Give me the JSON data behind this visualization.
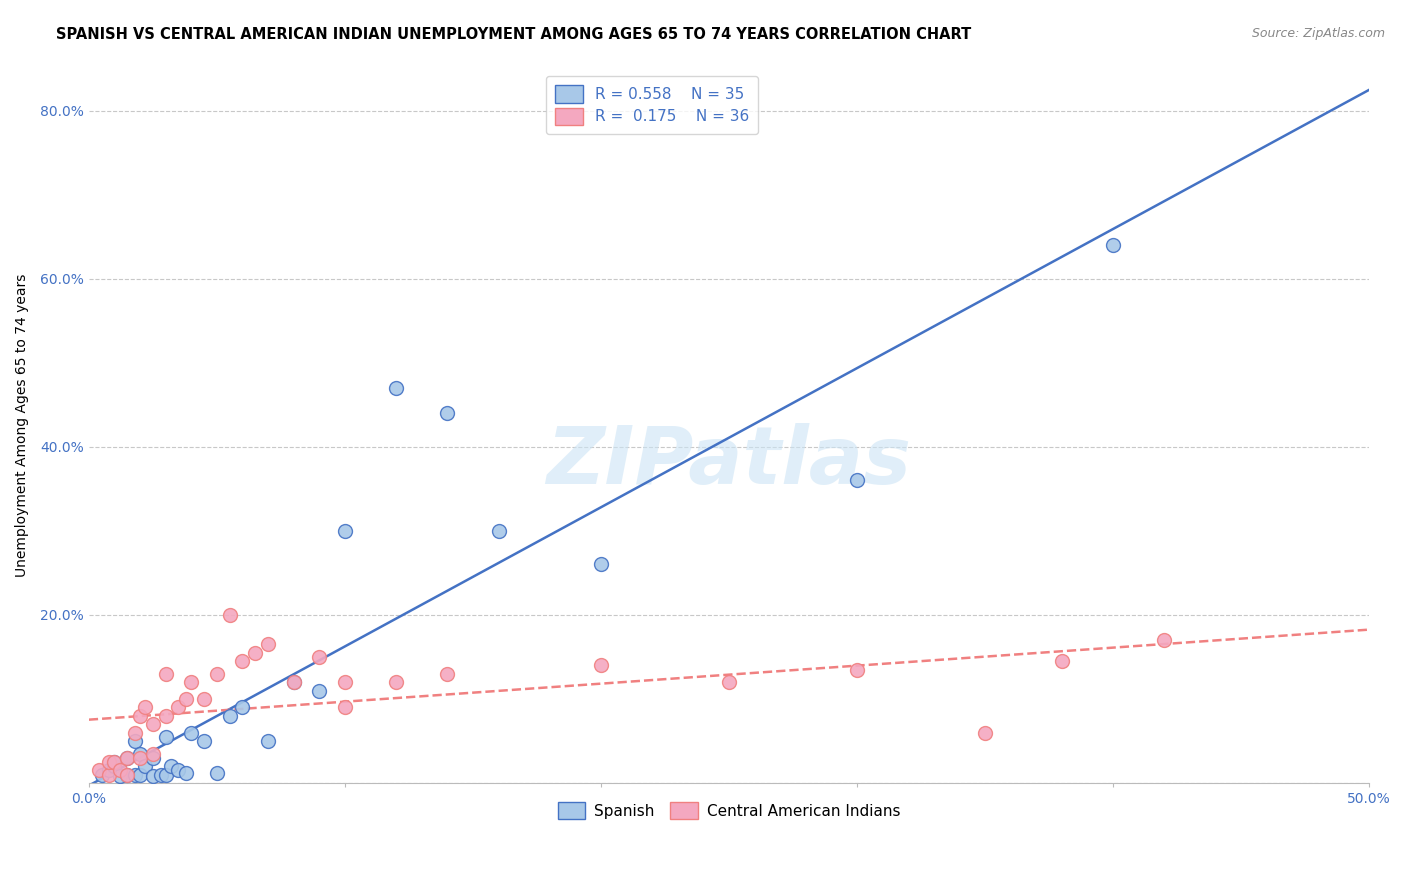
{
  "title": "SPANISH VS CENTRAL AMERICAN INDIAN UNEMPLOYMENT AMONG AGES 65 TO 74 YEARS CORRELATION CHART",
  "source": "Source: ZipAtlas.com",
  "ylabel": "Unemployment Among Ages 65 to 74 years",
  "xlim": [
    0.0,
    0.5
  ],
  "ylim": [
    0.0,
    0.85
  ],
  "x_tick_positions": [
    0.0,
    0.1,
    0.2,
    0.3,
    0.4,
    0.5
  ],
  "x_tick_labels": [
    "0.0%",
    "",
    "",
    "",
    "",
    "50.0%"
  ],
  "y_tick_positions": [
    0.0,
    0.2,
    0.4,
    0.6,
    0.8
  ],
  "y_tick_labels": [
    "",
    "20.0%",
    "40.0%",
    "60.0%",
    "80.0%"
  ],
  "watermark": "ZIPatlas",
  "legend_r_spanish": "0.558",
  "legend_n_spanish": "35",
  "legend_r_ca": "0.175",
  "legend_n_ca": "36",
  "spanish_color": "#a8c8e8",
  "ca_color": "#f4a8c0",
  "spanish_line_color": "#4472c4",
  "ca_line_color": "#f08080",
  "spanish_scatter_x": [
    0.005,
    0.008,
    0.01,
    0.01,
    0.012,
    0.015,
    0.015,
    0.018,
    0.018,
    0.02,
    0.02,
    0.022,
    0.025,
    0.025,
    0.028,
    0.03,
    0.03,
    0.032,
    0.035,
    0.038,
    0.04,
    0.045,
    0.05,
    0.055,
    0.06,
    0.07,
    0.08,
    0.09,
    0.1,
    0.12,
    0.14,
    0.16,
    0.2,
    0.3,
    0.4
  ],
  "spanish_scatter_y": [
    0.01,
    0.015,
    0.02,
    0.025,
    0.008,
    0.01,
    0.03,
    0.01,
    0.05,
    0.01,
    0.035,
    0.02,
    0.008,
    0.03,
    0.01,
    0.01,
    0.055,
    0.02,
    0.015,
    0.012,
    0.06,
    0.05,
    0.012,
    0.08,
    0.09,
    0.05,
    0.12,
    0.11,
    0.3,
    0.47,
    0.44,
    0.3,
    0.26,
    0.36,
    0.64
  ],
  "ca_scatter_x": [
    0.004,
    0.008,
    0.008,
    0.01,
    0.012,
    0.015,
    0.015,
    0.018,
    0.02,
    0.02,
    0.022,
    0.025,
    0.025,
    0.03,
    0.03,
    0.035,
    0.038,
    0.04,
    0.045,
    0.05,
    0.055,
    0.06,
    0.065,
    0.07,
    0.08,
    0.09,
    0.1,
    0.1,
    0.12,
    0.14,
    0.2,
    0.25,
    0.3,
    0.35,
    0.38,
    0.42
  ],
  "ca_scatter_y": [
    0.015,
    0.01,
    0.025,
    0.025,
    0.015,
    0.01,
    0.03,
    0.06,
    0.08,
    0.03,
    0.09,
    0.035,
    0.07,
    0.08,
    0.13,
    0.09,
    0.1,
    0.12,
    0.1,
    0.13,
    0.2,
    0.145,
    0.155,
    0.165,
    0.12,
    0.15,
    0.12,
    0.09,
    0.12,
    0.13,
    0.14,
    0.12,
    0.135,
    0.06,
    0.145,
    0.17
  ],
  "background_color": "#ffffff",
  "grid_color": "#c8c8c8",
  "tick_color": "#4472c4",
  "title_fontsize": 10.5,
  "source_fontsize": 9,
  "axis_label_fontsize": 10,
  "tick_fontsize": 10,
  "legend_fontsize": 11
}
